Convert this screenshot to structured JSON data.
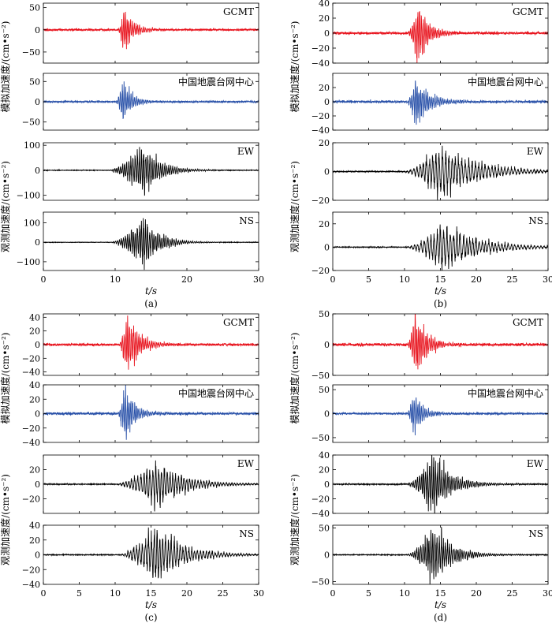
{
  "figure": {
    "xlabel": "t/s",
    "ylabel_sim": "模拟加速度/(cm•s⁻²)",
    "ylabel_obs": "观测加速度/(cm•s⁻²)",
    "colors": {
      "gcmt": "#e8141e",
      "cenc": "#2850a8",
      "obs": "#000000",
      "axis": "#000000"
    }
  },
  "chart_data": [
    {
      "panel_label": "(a)",
      "type": "line",
      "xlabel": "t/s",
      "xlim": [
        0,
        30
      ],
      "xticks": [
        0,
        10,
        20,
        30
      ],
      "series": [
        {
          "name": "GCMT",
          "role": "sim",
          "color": "#e8141e",
          "ylim": [
            -75,
            60
          ],
          "yticks": [
            -50,
            0,
            50
          ],
          "noise": 1.5,
          "onset": 10.3,
          "peak_t": 11.2,
          "peak": 37,
          "rise": 0.7,
          "decay": 1.5,
          "freq": 4.0,
          "seed": 11
        },
        {
          "name": "中国地震台网中心",
          "role": "sim",
          "color": "#2850a8",
          "ylim": [
            -70,
            70
          ],
          "yticks": [
            -50,
            0,
            50
          ],
          "noise": 1.5,
          "onset": 10.1,
          "peak_t": 11.0,
          "peak": 45,
          "rise": 0.6,
          "decay": 1.3,
          "freq": 4.0,
          "seed": 12
        },
        {
          "name": "EW",
          "role": "obs",
          "color": "#000000",
          "ylim": [
            -120,
            110
          ],
          "yticks": [
            -100,
            0,
            100
          ],
          "noise": 0.8,
          "onset": 9.0,
          "peak_t": 13.9,
          "peak": 80,
          "rise": 3.2,
          "decay": 2.4,
          "freq": 3.5,
          "seed": 13
        },
        {
          "name": "NS",
          "role": "obs",
          "color": "#000000",
          "ylim": [
            -145,
            155
          ],
          "yticks": [
            -100,
            0,
            100
          ],
          "noise": 0.8,
          "onset": 9.2,
          "peak_t": 14.0,
          "peak": 100,
          "rise": 3.0,
          "decay": 2.2,
          "freq": 3.5,
          "seed": 14
        }
      ]
    },
    {
      "panel_label": "(b)",
      "type": "line",
      "xlabel": "t/s",
      "xlim": [
        0,
        30
      ],
      "xticks": [
        0,
        5,
        10,
        15,
        20,
        25,
        30
      ],
      "series": [
        {
          "name": "GCMT",
          "role": "sim",
          "color": "#e8141e",
          "ylim": [
            -40,
            40
          ],
          "yticks": [
            -40,
            -20,
            0,
            20,
            40
          ],
          "noise": 1.2,
          "onset": 10.3,
          "peak_t": 11.8,
          "peak": 32,
          "rise": 1.1,
          "decay": 1.6,
          "freq": 4.0,
          "seed": 21
        },
        {
          "name": "中国地震台网中心",
          "role": "sim",
          "color": "#2850a8",
          "ylim": [
            -40,
            40
          ],
          "yticks": [
            -40,
            -20,
            0,
            20
          ],
          "noise": 1.2,
          "onset": 10.1,
          "peak_t": 11.6,
          "peak": 25,
          "rise": 1.2,
          "decay": 2.0,
          "freq": 4.0,
          "seed": 22
        },
        {
          "name": "EW",
          "role": "obs",
          "color": "#000000",
          "ylim": [
            -20,
            20
          ],
          "yticks": [
            -20,
            0,
            20
          ],
          "noise": 0.25,
          "onset": 9.8,
          "peak_t": 15.0,
          "peak": 15,
          "rise": 3.5,
          "decay": 5.0,
          "freq": 2.2,
          "seed": 23
        },
        {
          "name": "NS",
          "role": "obs",
          "color": "#000000",
          "ylim": [
            -20,
            30
          ],
          "yticks": [
            -20,
            0,
            20
          ],
          "noise": 0.25,
          "onset": 10.0,
          "peak_t": 15.2,
          "peak": 16,
          "rise": 3.5,
          "decay": 5.0,
          "freq": 2.2,
          "seed": 24
        }
      ]
    },
    {
      "panel_label": "(c)",
      "type": "line",
      "xlabel": "t/s",
      "xlim": [
        0,
        30
      ],
      "xticks": [
        0,
        5,
        10,
        15,
        20,
        25,
        30
      ],
      "series": [
        {
          "name": "GCMT",
          "role": "sim",
          "color": "#e8141e",
          "ylim": [
            -45,
            45
          ],
          "yticks": [
            -40,
            -20,
            0,
            20,
            40
          ],
          "noise": 1.2,
          "onset": 10.5,
          "peak_t": 11.6,
          "peak": 37,
          "rise": 0.9,
          "decay": 1.7,
          "freq": 4.0,
          "seed": 31
        },
        {
          "name": "中国地震台网中心",
          "role": "sim",
          "color": "#2850a8",
          "ylim": [
            -40,
            40
          ],
          "yticks": [
            -40,
            -20,
            0,
            20,
            40
          ],
          "noise": 1.2,
          "onset": 10.3,
          "peak_t": 11.3,
          "peak": 30,
          "rise": 0.8,
          "decay": 1.5,
          "freq": 4.0,
          "seed": 32
        },
        {
          "name": "EW",
          "role": "obs",
          "color": "#000000",
          "ylim": [
            -40,
            40
          ],
          "yticks": [
            -20,
            0,
            20
          ],
          "noise": 0.4,
          "onset": 10.0,
          "peak_t": 15.6,
          "peak": 26,
          "rise": 3.0,
          "decay": 3.8,
          "freq": 2.5,
          "seed": 33
        },
        {
          "name": "NS",
          "role": "obs",
          "color": "#000000",
          "ylim": [
            -40,
            40
          ],
          "yticks": [
            -40,
            -20,
            0,
            20,
            40
          ],
          "noise": 0.4,
          "onset": 10.4,
          "peak_t": 15.7,
          "peak": 30,
          "rise": 3.0,
          "decay": 3.8,
          "freq": 2.5,
          "seed": 34
        }
      ]
    },
    {
      "panel_label": "(d)",
      "type": "line",
      "xlabel": "t/s",
      "xlim": [
        0,
        30
      ],
      "xticks": [
        0,
        5,
        10,
        15,
        20,
        25,
        30
      ],
      "series": [
        {
          "name": "GCMT",
          "role": "sim",
          "color": "#e8141e",
          "ylim": [
            -50,
            50
          ],
          "yticks": [
            -50,
            0,
            50
          ],
          "noise": 1.5,
          "onset": 10.3,
          "peak_t": 11.5,
          "peak": 42,
          "rise": 0.8,
          "decay": 1.6,
          "freq": 4.0,
          "seed": 41
        },
        {
          "name": "中国地震台网中心",
          "role": "sim",
          "color": "#2850a8",
          "ylim": [
            -60,
            60
          ],
          "yticks": [
            -50,
            0,
            50
          ],
          "noise": 1.5,
          "onset": 10.3,
          "peak_t": 11.2,
          "peak": 38,
          "rise": 0.6,
          "decay": 1.4,
          "freq": 4.0,
          "seed": 42
        },
        {
          "name": "EW",
          "role": "obs",
          "color": "#000000",
          "ylim": [
            -40,
            40
          ],
          "yticks": [
            -40,
            -20,
            0,
            20,
            40
          ],
          "noise": 0.5,
          "onset": 10.2,
          "peak_t": 13.8,
          "peak": 32,
          "rise": 2.5,
          "decay": 2.6,
          "freq": 3.5,
          "seed": 43
        },
        {
          "name": "NS",
          "role": "obs",
          "color": "#000000",
          "ylim": [
            -55,
            55
          ],
          "yticks": [
            -50,
            0,
            50
          ],
          "noise": 0.5,
          "onset": 10.2,
          "peak_t": 14.0,
          "peak": 42,
          "rise": 2.5,
          "decay": 2.6,
          "freq": 3.5,
          "seed": 44
        }
      ]
    }
  ]
}
